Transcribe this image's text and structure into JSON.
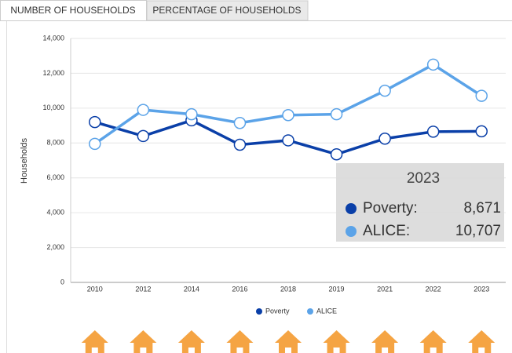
{
  "tabs": [
    "NUMBER OF HOUSEHOLDS",
    "PERCENTAGE OF HOUSEHOLDS"
  ],
  "chart_data": {
    "type": "line",
    "y_label": "Households",
    "categories": [
      "2010",
      "2012",
      "2014",
      "2016",
      "2018",
      "2019",
      "2021",
      "2022",
      "2023"
    ],
    "series": [
      {
        "name": "Poverty",
        "color": "#0a3fa8",
        "values": [
          9200,
          8400,
          9300,
          7900,
          8150,
          7350,
          8250,
          8650,
          8671
        ]
      },
      {
        "name": "ALICE",
        "color": "#5ba3e8",
        "values": [
          7950,
          9900,
          9650,
          9150,
          9600,
          9650,
          11000,
          12500,
          10707
        ]
      }
    ],
    "ylim": [
      0,
      14000
    ],
    "yticks": [
      0,
      {
        "value": 2000,
        "label": "2,000"
      },
      {
        "value": 4000,
        "label": "4,000"
      },
      {
        "value": 6000,
        "label": "6,000"
      },
      {
        "value": 8000,
        "label": "8,000"
      },
      {
        "value": 10000,
        "label": "10,000"
      },
      {
        "value": 12000,
        "label": "12,000"
      },
      {
        "value": 14000,
        "label": "14,000"
      }
    ],
    "grid": true,
    "legend": "bottom",
    "tooltip": {
      "title": "2023",
      "items": [
        {
          "label": "Poverty:",
          "value": "8,671"
        },
        {
          "label": "ALICE:",
          "value": "10,707"
        }
      ]
    }
  }
}
